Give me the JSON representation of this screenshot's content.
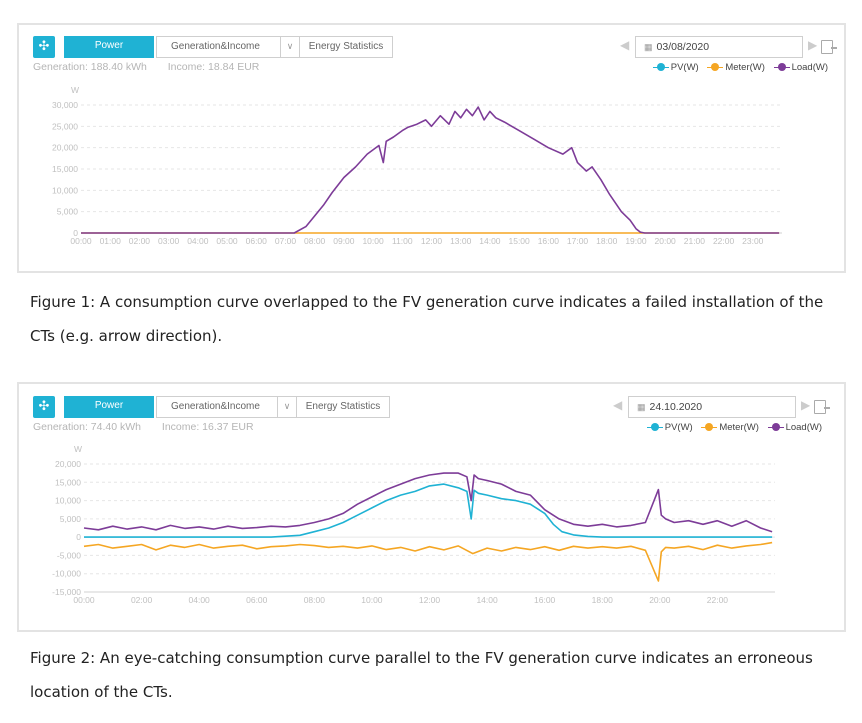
{
  "toolbar": {
    "move_icon": "move-arrows-icon",
    "power_tab": "Power",
    "generation_income_tab": "Generation&Income",
    "energy_statistics_tab": "Energy Statistics",
    "calendar_icon": "calendar-icon",
    "export_icon": "export-icon"
  },
  "figures": [
    {
      "generation_label": "Generation: 188.40 kWh",
      "income_label": "Income: 18.84 EUR",
      "date": "03/08/2020",
      "legend": [
        "PV(W)",
        "Meter(W)",
        "Load(W)"
      ],
      "caption": "Figure 1: A consumption curve overlapped to the FV generation curve indicates a failed installation of the CTs (e.g. arrow direction)."
    },
    {
      "generation_label": "Generation: 74.40 kWh",
      "income_label": "Income: 16.37 EUR",
      "date": "24.10.2020",
      "legend": [
        "PV(W)",
        "Meter(W)",
        "Load(W)"
      ],
      "caption": "Figure 2: An eye-catching consumption curve parallel to the FV generation curve indicates an erroneous location of the CTs."
    }
  ],
  "colors": {
    "accent": "#1fb2d4",
    "pv": "#1fb2d4",
    "meter": "#f5a623",
    "load": "#7d3c98"
  },
  "chart_data": [
    {
      "type": "line",
      "ylabel": "W",
      "ylim": [
        0,
        30000
      ],
      "yticks": [
        0,
        5000,
        10000,
        15000,
        20000,
        25000,
        30000
      ],
      "ytick_labels": [
        "0",
        "5,000",
        "10,000",
        "15,000",
        "20,000",
        "25,000",
        "30,000"
      ],
      "xlim": [
        0,
        24
      ],
      "xticks": [
        "00:00",
        "01:00",
        "02:00",
        "03:00",
        "04:00",
        "05:00",
        "06:00",
        "07:00",
        "08:00",
        "09:00",
        "10:00",
        "11:00",
        "12:00",
        "13:00",
        "14:00",
        "15:00",
        "16:00",
        "17:00",
        "18:00",
        "19:00",
        "20:00",
        "21:00",
        "22:00",
        "23:00"
      ],
      "xtick_positions": [
        0,
        1,
        2,
        3,
        4,
        5,
        6,
        7,
        8,
        9,
        10,
        11,
        12,
        13,
        14,
        15,
        16,
        17,
        18,
        19,
        20,
        21,
        22,
        23
      ],
      "series": [
        {
          "name": "Meter(W)",
          "color": "#f5a623",
          "x": [
            0,
            23.9
          ],
          "y": [
            0,
            0
          ]
        },
        {
          "name": "Load(W)",
          "color": "#7d3c98",
          "x": [
            0,
            7.3,
            7.7,
            8.0,
            8.3,
            8.6,
            9.0,
            9.4,
            9.8,
            10.2,
            10.35,
            10.45,
            10.7,
            11.0,
            11.2,
            11.5,
            11.8,
            12.0,
            12.3,
            12.6,
            12.8,
            13.0,
            13.2,
            13.4,
            13.6,
            13.8,
            14.0,
            14.2,
            14.5,
            15.0,
            15.5,
            16.0,
            16.5,
            16.8,
            17.0,
            17.3,
            17.5,
            17.8,
            18.1,
            18.5,
            18.8,
            19.0,
            19.15,
            19.3,
            23.9
          ],
          "y": [
            0,
            0,
            1500,
            4000,
            6500,
            9500,
            13000,
            15500,
            18500,
            20500,
            16500,
            21500,
            22500,
            24000,
            24800,
            25500,
            26500,
            25000,
            27500,
            25500,
            28500,
            27000,
            29000,
            27500,
            29500,
            26500,
            28500,
            27000,
            26000,
            24000,
            22000,
            20000,
            18500,
            20000,
            16500,
            14500,
            15500,
            12500,
            9000,
            5000,
            3000,
            1000,
            200,
            0,
            0
          ]
        }
      ]
    },
    {
      "type": "line",
      "ylabel": "W",
      "ylim": [
        -15000,
        20000
      ],
      "yticks": [
        -15000,
        -10000,
        -5000,
        0,
        5000,
        10000,
        15000,
        20000
      ],
      "ytick_labels": [
        "-15,000",
        "-10,000",
        "-5,000",
        "0",
        "5,000",
        "10,000",
        "15,000",
        "20,000"
      ],
      "xlim": [
        0,
        24
      ],
      "xticks": [
        "00:00",
        "02:00",
        "04:00",
        "06:00",
        "08:00",
        "10:00",
        "12:00",
        "14:00",
        "16:00",
        "18:00",
        "20:00",
        "22:00"
      ],
      "xtick_positions": [
        0,
        2,
        4,
        6,
        8,
        10,
        12,
        14,
        16,
        18,
        20,
        22
      ],
      "series": [
        {
          "name": "PV(W)",
          "color": "#1fb2d4",
          "x": [
            0,
            6.5,
            7.5,
            8.0,
            8.5,
            9.0,
            9.5,
            10.0,
            10.5,
            11.0,
            11.5,
            12.0,
            12.5,
            13.0,
            13.3,
            13.45,
            13.55,
            13.7,
            14.0,
            14.5,
            15.0,
            15.5,
            16.0,
            16.3,
            16.6,
            17.0,
            17.5,
            18.0,
            23.9
          ],
          "y": [
            0,
            0,
            500,
            1500,
            2500,
            4000,
            6000,
            8000,
            10000,
            11500,
            12500,
            14000,
            14500,
            13500,
            12500,
            5000,
            12800,
            12000,
            11500,
            10500,
            10000,
            9000,
            6500,
            3500,
            1500,
            600,
            200,
            0,
            0
          ]
        },
        {
          "name": "Meter(W)",
          "color": "#f5a623",
          "x": [
            0,
            0.5,
            1,
            1.5,
            2,
            2.5,
            3,
            3.5,
            4,
            4.5,
            5,
            5.5,
            6,
            6.5,
            7,
            7.5,
            8,
            8.5,
            9,
            9.5,
            10,
            10.5,
            11,
            11.5,
            12,
            12.5,
            13,
            13.5,
            14,
            14.5,
            15,
            15.5,
            16,
            16.5,
            17,
            17.5,
            18,
            18.5,
            19,
            19.5,
            19.95,
            20.05,
            20.2,
            20.5,
            21,
            21.5,
            22,
            22.5,
            23,
            23.5,
            23.9
          ],
          "y": [
            -2500,
            -2000,
            -3000,
            -2500,
            -2000,
            -3500,
            -2200,
            -2800,
            -2000,
            -3000,
            -2500,
            -2200,
            -3200,
            -2600,
            -2400,
            -2000,
            -2300,
            -2800,
            -2500,
            -3000,
            -2400,
            -3400,
            -2800,
            -3800,
            -2600,
            -3500,
            -2400,
            -4500,
            -3000,
            -3800,
            -2800,
            -3400,
            -2600,
            -3600,
            -2500,
            -3000,
            -2600,
            -3000,
            -2500,
            -3600,
            -12000,
            -4000,
            -2800,
            -3000,
            -2500,
            -3400,
            -2200,
            -3000,
            -2400,
            -2000,
            -1500
          ]
        },
        {
          "name": "Load(W)",
          "color": "#7d3c98",
          "x": [
            0,
            0.5,
            1,
            1.5,
            2,
            2.5,
            3,
            3.5,
            4,
            4.5,
            5,
            5.5,
            6,
            6.5,
            7,
            7.5,
            8,
            8.5,
            9,
            9.5,
            10,
            10.5,
            11,
            11.5,
            12,
            12.5,
            13,
            13.3,
            13.45,
            13.55,
            13.7,
            14,
            14.5,
            15,
            15.5,
            16,
            16.5,
            17,
            17.5,
            18,
            18.5,
            19,
            19.5,
            19.95,
            20.05,
            20.2,
            20.5,
            21,
            21.5,
            22,
            22.5,
            23,
            23.5,
            23.9
          ],
          "y": [
            2500,
            2000,
            3000,
            2200,
            2800,
            2000,
            3200,
            2400,
            2800,
            2200,
            3000,
            2400,
            2600,
            3000,
            2800,
            3200,
            4000,
            5000,
            6500,
            9000,
            11000,
            13000,
            14500,
            16000,
            17000,
            17500,
            17500,
            16500,
            10000,
            17000,
            16000,
            15500,
            14500,
            12500,
            11500,
            7500,
            5000,
            3500,
            3000,
            3500,
            2800,
            3200,
            4000,
            13000,
            6000,
            5000,
            4000,
            4500,
            3500,
            4500,
            3000,
            4500,
            2500,
            1500
          ]
        }
      ]
    }
  ]
}
